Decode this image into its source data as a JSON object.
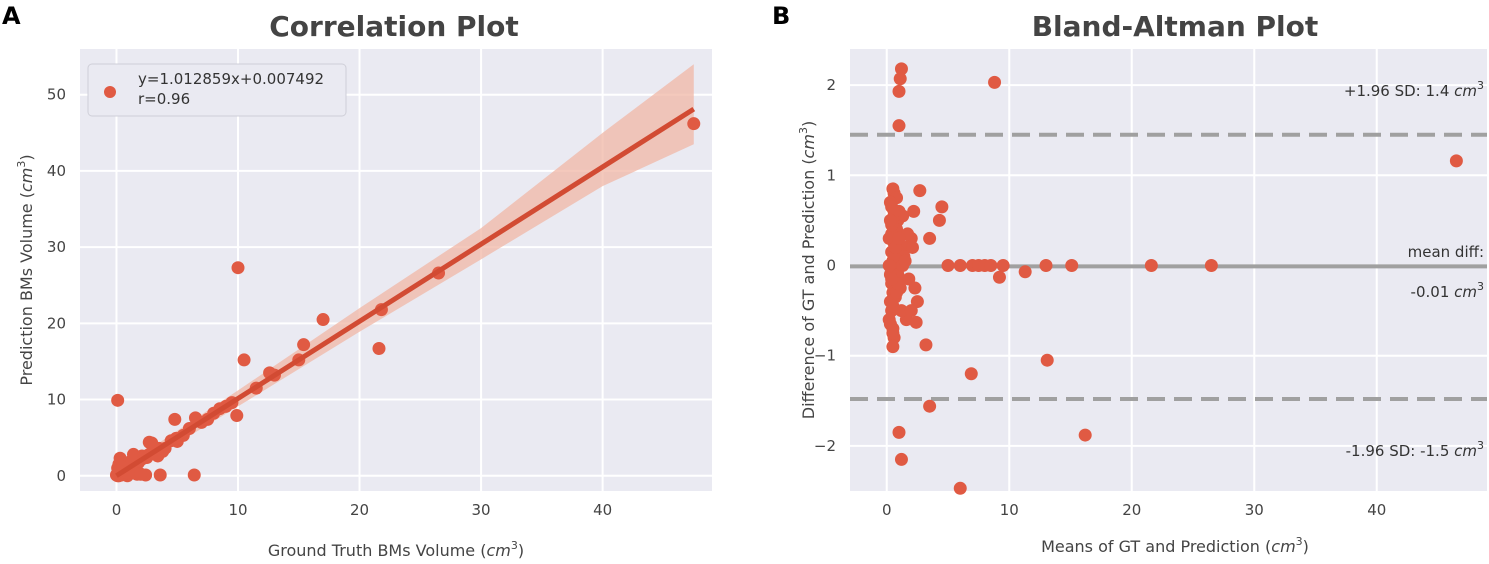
{
  "colors": {
    "background": "#eaeaf2",
    "grid": "#ffffff",
    "point": "#e05a43",
    "fit_line": "#d24b33",
    "band": "#f0b7a6",
    "mean_line": "#a0a0a0",
    "sd_line": "#a0a0a0"
  },
  "chart_data": [
    {
      "type": "scatter",
      "panel": "A",
      "title": "Correlation Plot",
      "xlabel": "Ground Truth BMs Volume (",
      "ylabel": "Prediction BMs Volume (",
      "unit_base": "cm",
      "unit_exp": "3",
      "unit_close": ")",
      "xlim": [
        -3,
        49
      ],
      "ylim": [
        -2,
        56
      ],
      "xticks": [
        0,
        10,
        20,
        30,
        40
      ],
      "yticks": [
        0,
        10,
        20,
        30,
        40,
        50
      ],
      "legend": {
        "line1": "y=1.012859x+0.007492",
        "line2": "r=0.96",
        "position": "top-left"
      },
      "fit": {
        "slope": 1.012859,
        "intercept": 0.007492,
        "x_range": [
          0,
          47.5
        ]
      },
      "band": {
        "lower": [
          [
            0,
            -0.6
          ],
          [
            10,
            9.1
          ],
          [
            20,
            18.9
          ],
          [
            30,
            28.4
          ],
          [
            40,
            38.0
          ],
          [
            47.5,
            43.5
          ]
        ],
        "upper": [
          [
            0,
            0.6
          ],
          [
            10,
            11.2
          ],
          [
            20,
            22.0
          ],
          [
            30,
            32.5
          ],
          [
            40,
            45.0
          ],
          [
            47.5,
            54.0
          ]
        ]
      },
      "points": {
        "x": [
          0.1,
          0.2,
          0.3,
          0.1,
          0.4,
          0.5,
          0.6,
          0.8,
          1.0,
          1.2,
          1.5,
          1.8,
          2.0,
          2.2,
          2.5,
          2.8,
          3.0,
          3.2,
          3.5,
          0.2,
          0.3,
          0.7,
          0.9,
          1.1,
          1.3,
          1.6,
          1.9,
          2.1,
          2.4,
          2.6,
          0.1,
          0.0,
          0.2,
          0.4,
          0.6,
          0.5,
          0.9,
          1.4,
          1.7,
          2.3,
          2.9,
          3.4,
          3.6,
          4.0,
          4.5,
          4.8,
          5.0,
          5.5,
          6.0,
          6.4,
          6.5,
          7.0,
          7.5,
          8.0,
          8.5,
          9.0,
          9.5,
          9.9,
          10.0,
          10.5,
          11.5,
          12.6,
          13.0,
          15.0,
          15.4,
          17.0,
          21.6,
          21.8,
          26.5,
          47.5,
          0.1,
          0.2,
          2.0,
          2.7,
          3.8,
          4.9
        ],
        "y": [
          0.2,
          0.5,
          0.3,
          1.0,
          0.6,
          0.4,
          0.8,
          0.7,
          1.0,
          1.3,
          1.6,
          1.7,
          2.1,
          2.3,
          2.4,
          2.9,
          3.1,
          3.0,
          3.6,
          1.5,
          2.3,
          0.2,
          0.0,
          1.8,
          2.0,
          1.2,
          0.3,
          2.6,
          0.1,
          2.7,
          9.9,
          0.1,
          0.0,
          0.1,
          0.2,
          1.1,
          0.4,
          2.8,
          0.2,
          2.5,
          4.3,
          2.6,
          0.1,
          3.6,
          4.6,
          7.4,
          4.5,
          5.3,
          6.2,
          0.1,
          7.6,
          7.0,
          7.4,
          8.2,
          8.8,
          9.1,
          9.6,
          7.9,
          27.3,
          15.2,
          11.5,
          13.5,
          13.2,
          15.2,
          17.2,
          20.5,
          16.7,
          21.8,
          26.6,
          46.2,
          0.0,
          0.6,
          0.2,
          4.4,
          3.2,
          4.9
        ]
      }
    },
    {
      "type": "scatter",
      "panel": "B",
      "title": "Bland-Altman Plot",
      "xlabel": "Means of GT and Prediction (",
      "ylabel": "Difference of GT and Prediction (",
      "unit_base": "cm",
      "unit_exp": "3",
      "unit_close": ")",
      "xlim": [
        -3,
        49
      ],
      "ylim": [
        -2.5,
        2.4
      ],
      "xticks": [
        0,
        10,
        20,
        30,
        40
      ],
      "yticks": [
        -2,
        -1,
        0,
        1,
        2
      ],
      "ytick_labels": [
        "−2",
        "−1",
        "0",
        "1",
        "2"
      ],
      "mean_diff": -0.01,
      "upper_sd": 1.45,
      "lower_sd": -1.48,
      "annotations": {
        "upper_prefix": "+1.96 SD: 1.4 ",
        "mean_label": "mean diff:",
        "mean_value": "-0.01 ",
        "lower_prefix": "-1.96 SD: -1.5 "
      },
      "points": {
        "x": [
          1.2,
          1.0,
          1.1,
          8.8,
          1.0,
          46.5,
          0.5,
          0.6,
          0.8,
          1.0,
          1.3,
          2.7,
          2.2,
          0.9,
          4.5,
          4.3,
          3.5,
          2.0,
          1.5,
          5.0,
          6.0,
          7.0,
          7.5,
          8.0,
          8.5,
          9.5,
          11.3,
          13.0,
          15.1,
          21.6,
          26.5,
          9.2,
          2.5,
          1.6,
          1.2,
          2.0,
          2.4,
          0.6,
          3.2,
          6.9,
          13.1,
          0.5,
          1.0,
          3.5,
          16.2,
          1.2,
          6.0,
          0.3,
          0.4,
          0.7,
          0.8,
          0.4,
          0.6,
          1.0,
          1.4,
          0.5,
          0.3,
          0.6,
          0.9,
          1.8,
          0.4,
          0.5,
          0.7,
          0.3,
          0.4,
          1.1,
          0.2,
          0.5,
          0.8,
          0.6,
          1.7,
          2.1,
          0.4,
          0.2,
          0.3,
          0.5,
          0.6,
          1.3,
          0.9,
          0.4,
          1.5,
          0.3,
          0.6,
          2.3,
          0.2,
          0.7,
          0.5,
          1.0,
          0.4,
          0.3
        ],
        "y": [
          2.18,
          1.93,
          2.07,
          2.03,
          1.55,
          1.16,
          0.85,
          0.8,
          0.75,
          0.6,
          0.55,
          0.83,
          0.6,
          0.5,
          0.65,
          0.5,
          0.3,
          0.3,
          0.2,
          0.0,
          0.0,
          0.0,
          0.0,
          0.0,
          0.0,
          0.0,
          -0.07,
          0.0,
          0.0,
          0.0,
          0.0,
          -0.13,
          -0.4,
          -0.6,
          -0.5,
          -0.5,
          -0.63,
          -0.8,
          -0.88,
          -1.2,
          -1.05,
          -0.9,
          -1.85,
          -1.56,
          -1.88,
          -2.15,
          -2.47,
          0.7,
          0.65,
          0.45,
          0.4,
          0.35,
          0.25,
          0.15,
          0.1,
          0.05,
          0.0,
          -0.05,
          -0.1,
          -0.15,
          -0.2,
          -0.3,
          -0.35,
          -0.4,
          -0.5,
          -0.25,
          -0.6,
          -0.7,
          -0.3,
          0.55,
          0.35,
          0.2,
          0.15,
          0.3,
          -0.1,
          -0.45,
          0.1,
          0.0,
          -0.2,
          0.45,
          0.05,
          -0.65,
          0.6,
          -0.25,
          0.0,
          0.2,
          -0.75,
          0.3,
          -0.15,
          0.5
        ]
      }
    }
  ]
}
